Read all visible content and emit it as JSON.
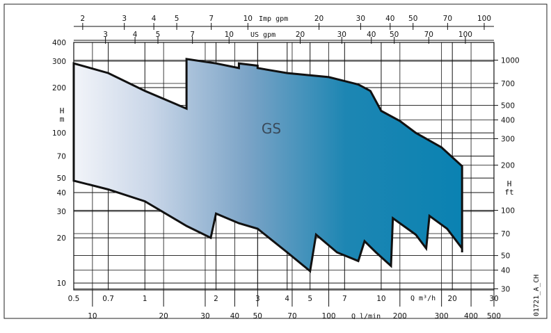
{
  "figure_id": "01721_A_CH",
  "chart_data": {
    "type": "area",
    "series": [
      {
        "name": "GS",
        "upper": [
          [
            0.5,
            290
          ],
          [
            0.7,
            250
          ],
          [
            1,
            190
          ],
          [
            1.5,
            145
          ],
          [
            1.5,
            310
          ],
          [
            2,
            290
          ],
          [
            2.5,
            270
          ],
          [
            2.5,
            290
          ],
          [
            3,
            280
          ],
          [
            3,
            270
          ],
          [
            4,
            250
          ],
          [
            6,
            235
          ],
          [
            8,
            210
          ],
          [
            9,
            190
          ],
          [
            10,
            140
          ],
          [
            12,
            120
          ],
          [
            14,
            100
          ],
          [
            18,
            80
          ],
          [
            22,
            60
          ],
          [
            22,
            57
          ]
        ],
        "lower": [
          [
            0.5,
            48
          ],
          [
            0.7,
            42
          ],
          [
            1,
            35
          ],
          [
            1.5,
            24
          ],
          [
            1.9,
            20
          ],
          [
            2,
            29
          ],
          [
            2.5,
            25
          ],
          [
            3,
            23
          ],
          [
            4,
            16
          ],
          [
            5,
            12
          ],
          [
            5.3,
            21
          ],
          [
            6.5,
            16
          ],
          [
            8,
            14
          ],
          [
            8.5,
            19
          ],
          [
            9.5,
            16
          ],
          [
            11,
            13
          ],
          [
            11.2,
            27
          ],
          [
            14,
            21
          ],
          [
            15.5,
            17
          ],
          [
            16,
            28
          ],
          [
            19,
            23
          ],
          [
            22,
            17
          ],
          [
            22,
            16
          ]
        ]
      }
    ],
    "axes": {
      "m3h": {
        "label": "Q m³/h",
        "ticks": [
          "0.5",
          "0.7",
          "1",
          "2",
          "3",
          "4",
          "5",
          "7",
          "10",
          "20",
          "30"
        ],
        "range": [
          0.5,
          30
        ],
        "scale": "log"
      },
      "lmin": {
        "label": "Q l/min",
        "ticks": [
          "10",
          "20",
          "30",
          "40",
          "50",
          "70",
          "100",
          "200",
          "300",
          "400",
          "500"
        ]
      },
      "impgpm": {
        "label": "Imp gpm",
        "ticks": [
          "2",
          "3",
          "4",
          "5",
          "7",
          "10",
          "20",
          "30",
          "40",
          "50",
          "70",
          "100"
        ]
      },
      "usgpm": {
        "label": "US gpm",
        "ticks": [
          "3",
          "4",
          "5",
          "7",
          "10",
          "20",
          "30",
          "40",
          "50",
          "70",
          "100"
        ]
      },
      "m": {
        "label": "H\nm",
        "ticks": [
          "10",
          "20",
          "30",
          "40",
          "50",
          "70",
          "100",
          "200",
          "300",
          "400"
        ],
        "range": [
          9,
          400
        ],
        "scale": "log"
      },
      "ft": {
        "label": "H\nft",
        "ticks": [
          "30",
          "40",
          "50",
          "70",
          "100",
          "200",
          "300",
          "400",
          "500",
          "700",
          "1000"
        ]
      }
    },
    "grid": true
  }
}
